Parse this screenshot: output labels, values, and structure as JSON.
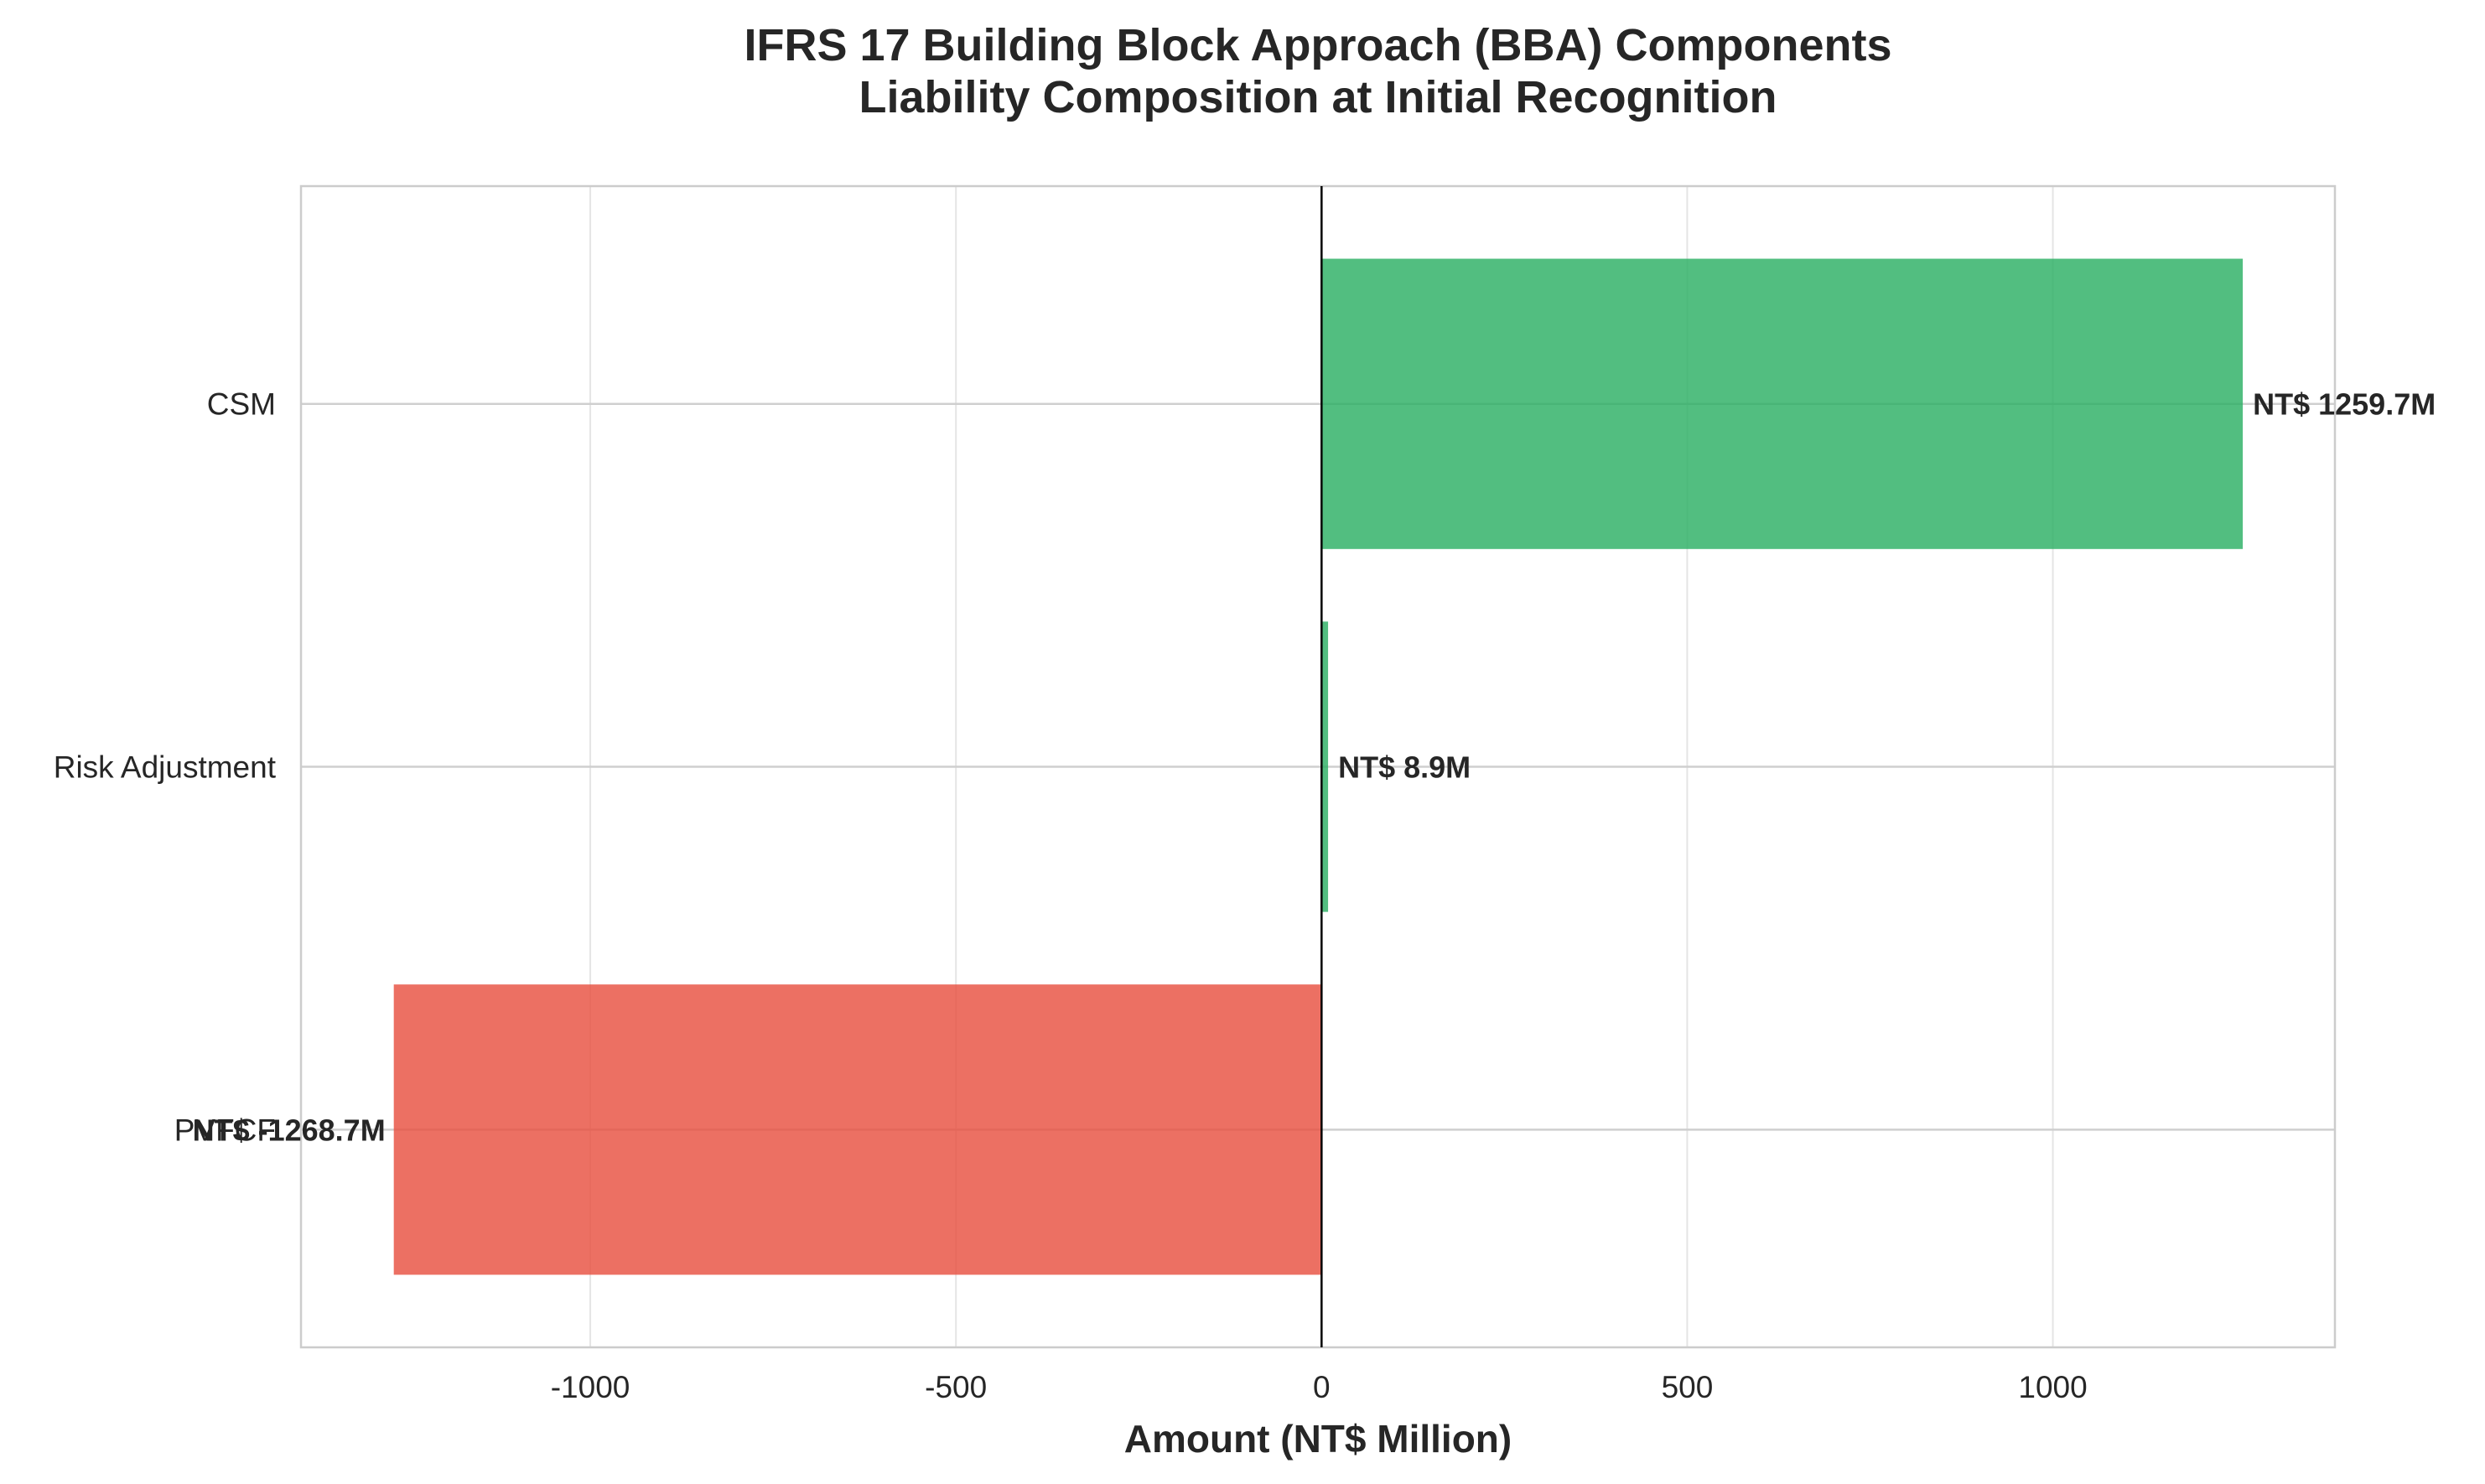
{
  "chart_data": {
    "type": "bar",
    "orientation": "horizontal",
    "title": "IFRS 17 Building Block Approach (BBA) Components",
    "subtitle": "Liability Composition at Initial Recognition",
    "xlabel": "Amount (NT$ Million)",
    "ylabel": "",
    "categories": [
      "PVFCF",
      "Risk Adjustment",
      "CSM"
    ],
    "values": [
      -1268.7,
      8.9,
      1259.7
    ],
    "data_labels": [
      "NT$ -1268.7M",
      "NT$ 8.9M",
      "NT$ 1259.7M"
    ],
    "xlim": [
      -1395.6,
      1385.7
    ],
    "xticks": [
      -1000,
      -500,
      0,
      500,
      1000
    ],
    "xtick_labels": [
      "-1000",
      "-500",
      "0",
      "500",
      "1000"
    ],
    "grid": true,
    "legend": "none",
    "colors": {
      "negative": "#E74C3C",
      "positive": "#27AE60",
      "zero_line": "#000000",
      "grid": "#E5E5E5",
      "frame": "#CCCCCC",
      "text": "#262626"
    }
  }
}
